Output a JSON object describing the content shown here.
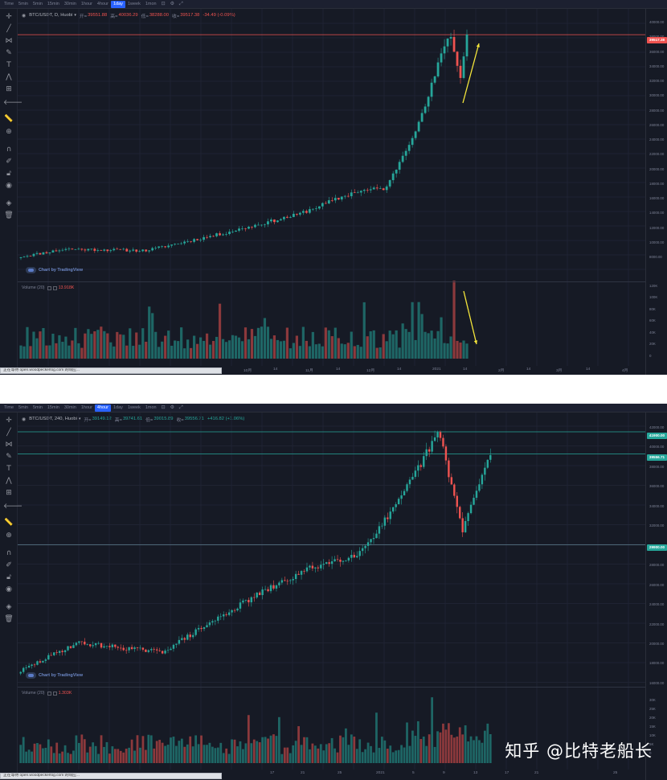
{
  "timeframes": [
    "Time",
    "5min",
    "5min",
    "15min",
    "30min",
    "1hour",
    "4hour",
    "1day",
    "1week",
    "1mon"
  ],
  "panels": [
    {
      "id": "top",
      "active_timeframe": 7,
      "legend": {
        "symbol": "BTC/USDT, D, Huobi",
        "o_label": "开=",
        "o": "39551.88",
        "h_label": "高=",
        "h": "40036.29",
        "l_label": "低=",
        "l": "38288.00",
        "c_label": "收=",
        "c": "39517.38",
        "change": "-34.49 (-0.09%)",
        "change_dir": "down"
      },
      "volume_legend": {
        "name": "Volume (20)",
        "value": "13.918K"
      },
      "price_labels": [
        "40000.00",
        "38000.00",
        "36000.00",
        "34000.00",
        "32000.00",
        "30000.00",
        "28000.00",
        "26000.00",
        "24000.00",
        "22000.00",
        "20000.00",
        "18000.00",
        "16000.00",
        "14000.00",
        "12000.00",
        "10000.00",
        "8000.00"
      ],
      "badges": [
        {
          "text": "39517.38",
          "color": "#ef5350",
          "value": 39517.38
        }
      ],
      "volume_labels": [
        "120K",
        "100K",
        "80K",
        "60K",
        "40K",
        "20K",
        "0"
      ],
      "time_labels": [
        "10月",
        "14",
        "11月",
        "14",
        "12月",
        "14",
        "2021",
        "14",
        "2月",
        "14",
        "3月",
        "14",
        "4月"
      ],
      "watermark_logo": "Chart by TradingView",
      "status": "正在等待 open.woodpeckerlog.com 的响应..."
    },
    {
      "id": "bottom",
      "active_timeframe": 6,
      "legend": {
        "symbol": "BTC/USDT, 240, Huobi",
        "o_label": "开=",
        "o": "39149.12",
        "h_label": "高=",
        "h": "39741.61",
        "l_label": "低=",
        "l": "39015.89",
        "c_label": "收=",
        "c": "39556.71",
        "change": "+416.82 (+1.06%)",
        "change_dir": "up"
      },
      "volume_legend": {
        "name": "Volume (20)",
        "value": "1.303K"
      },
      "price_labels": [
        "42000.00",
        "40000.00",
        "38000.00",
        "36000.00",
        "34000.00",
        "32000.00",
        "30000.00",
        "28000.00",
        "26000.00",
        "24000.00",
        "22000.00",
        "20000.00",
        "18000.00",
        "16000.00"
      ],
      "badges": [
        {
          "text": "41900.00",
          "color": "#26a69a",
          "value": 41900
        },
        {
          "text": "39556.71",
          "color": "#26a69a",
          "value": 39556.71
        },
        {
          "text": "29900.00",
          "color": "#26a69a",
          "value": 29900
        }
      ],
      "volume_labels": [
        "30K",
        "25K",
        "20K",
        "15K",
        "10K",
        "5K",
        "0"
      ],
      "time_labels": [
        "17",
        "21",
        "25",
        "2021",
        "5",
        "9",
        "13",
        "17",
        "21",
        "25"
      ],
      "watermark_logo": "Chart by TradingView",
      "status": "正在等待 open.woodpeckerlog.com 的响应..."
    }
  ],
  "watermark": "知乎 @比特老船长",
  "colors": {
    "up": "#26a69a",
    "down": "#ef5350",
    "background": "#161a25",
    "annotation_arrow": "#f5e63b"
  },
  "chart_data": [
    {
      "type": "candlestick",
      "symbol": "BTC/USDT",
      "interval": "D",
      "exchange": "Huobi",
      "ylim": [
        8000,
        41000
      ],
      "volume_ylim": [
        0,
        120000
      ],
      "last_price": 39517.38,
      "trend_keypoints": [
        {
          "x": "2020-09",
          "close": 10500
        },
        {
          "x": "2020-10",
          "close": 11500
        },
        {
          "x": "2020-10-14",
          "close": 11300
        },
        {
          "x": "2020-11",
          "close": 13500
        },
        {
          "x": "2020-11-14",
          "close": 16000
        },
        {
          "x": "2020-12",
          "close": 19000
        },
        {
          "x": "2020-12-14",
          "close": 19500
        },
        {
          "x": "2021",
          "close": 29000
        },
        {
          "x": "2021-01-08",
          "close": 40000
        },
        {
          "x": "2021-01-11",
          "close": 34000
        },
        {
          "x": "2021-01-14",
          "close": 39517
        }
      ]
    },
    {
      "type": "candlestick",
      "symbol": "BTC/USDT",
      "interval": "240",
      "exchange": "Huobi",
      "ylim": [
        15000,
        42500
      ],
      "volume_ylim": [
        0,
        30000
      ],
      "levels": [
        41900,
        39556.71,
        29900
      ],
      "last_price": 39556.71,
      "trend_keypoints": [
        {
          "x": "2020-12-14",
          "close": 16500
        },
        {
          "x": "2020-12-17",
          "close": 19500
        },
        {
          "x": "2020-12-21",
          "close": 18500
        },
        {
          "x": "2020-12-25",
          "close": 24500
        },
        {
          "x": "2020-12-29",
          "close": 27500
        },
        {
          "x": "2021",
          "close": 29000
        },
        {
          "x": "2021-01-05",
          "close": 34000
        },
        {
          "x": "2021-01-08",
          "close": 41900
        },
        {
          "x": "2021-01-11",
          "close": 31500
        },
        {
          "x": "2021-01-14",
          "close": 39556
        }
      ]
    }
  ]
}
